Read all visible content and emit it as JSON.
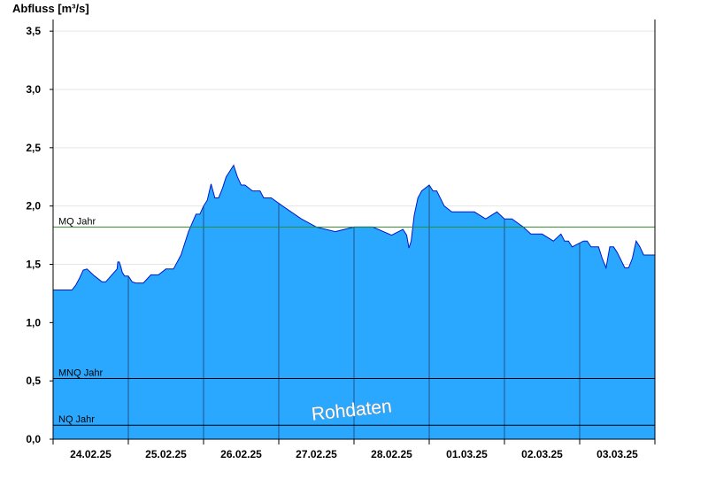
{
  "chart_data": {
    "type": "area",
    "ylabel": "Abfluss [m³/s]",
    "ylim": [
      0,
      3.6
    ],
    "xlim": [
      0,
      8
    ],
    "grid": true,
    "y_ticks": [
      {
        "value": 0.0,
        "label": "0,0"
      },
      {
        "value": 0.5,
        "label": "0,5"
      },
      {
        "value": 1.0,
        "label": "1,0"
      },
      {
        "value": 1.5,
        "label": "1,5"
      },
      {
        "value": 2.0,
        "label": "2,0"
      },
      {
        "value": 2.5,
        "label": "2,5"
      },
      {
        "value": 3.0,
        "label": "3,0"
      },
      {
        "value": 3.5,
        "label": "3,5"
      }
    ],
    "x_ticks": [
      "24.02.25",
      "25.02.25",
      "26.02.25",
      "27.02.25",
      "28.02.25",
      "01.03.25",
      "02.03.25",
      "03.03.25"
    ],
    "reference_lines": [
      {
        "name": "MQ Jahr",
        "value": 1.82,
        "color": "#2e8b2e"
      },
      {
        "name": "MNQ Jahr",
        "value": 0.52,
        "color": "#000000"
      },
      {
        "name": "NQ Jahr",
        "value": 0.12,
        "color": "#000000"
      }
    ],
    "annotation": "Rohdaten",
    "colors": {
      "fill": "#2aa8ff",
      "line": "#0018c8",
      "day_divider": "#1f3f6a",
      "grid": "#e6e6e6"
    },
    "series": [
      {
        "x": [
          0,
          0.25,
          0.3,
          0.35,
          0.4,
          0.45,
          0.55,
          0.65,
          0.7,
          0.85,
          0.86,
          0.88,
          0.9,
          0.92,
          0.95,
          1.0,
          1.05,
          1.1,
          1.2,
          1.3,
          1.4,
          1.5,
          1.6,
          1.7,
          1.8,
          1.9,
          1.95,
          2.0,
          2.05,
          2.1,
          2.15,
          2.2,
          2.25,
          2.3,
          2.4,
          2.45,
          2.5,
          2.55,
          2.65,
          2.7,
          2.75,
          2.8,
          2.85,
          2.9,
          3.05,
          3.3,
          3.5,
          3.75,
          4.0,
          4.25,
          4.5,
          4.65,
          4.7,
          4.73,
          4.76,
          4.8,
          4.85,
          4.9,
          5.0,
          5.05,
          5.1,
          5.2,
          5.3,
          5.5,
          5.6,
          5.75,
          5.9,
          6.0,
          6.1,
          6.25,
          6.35,
          6.5,
          6.65,
          6.75,
          6.8,
          6.85,
          6.9,
          7.05,
          7.1,
          7.15,
          7.2,
          7.25,
          7.3,
          7.35,
          7.4,
          7.45,
          7.5,
          7.6,
          7.65,
          7.7,
          7.75,
          7.8,
          7.85,
          7.9,
          8.0
        ],
        "values": [
          1.28,
          1.28,
          1.32,
          1.38,
          1.45,
          1.46,
          1.4,
          1.35,
          1.35,
          1.46,
          1.52,
          1.52,
          1.48,
          1.43,
          1.4,
          1.4,
          1.35,
          1.34,
          1.34,
          1.41,
          1.41,
          1.46,
          1.46,
          1.58,
          1.78,
          1.93,
          1.93,
          2.0,
          2.05,
          2.19,
          2.07,
          2.07,
          2.15,
          2.25,
          2.35,
          2.25,
          2.18,
          2.18,
          2.13,
          2.13,
          2.13,
          2.07,
          2.07,
          2.07,
          2.0,
          1.89,
          1.82,
          1.78,
          1.82,
          1.82,
          1.75,
          1.8,
          1.75,
          1.64,
          1.7,
          1.92,
          2.07,
          2.13,
          2.18,
          2.13,
          2.13,
          2.0,
          1.95,
          1.95,
          1.95,
          1.89,
          1.95,
          1.89,
          1.89,
          1.82,
          1.76,
          1.76,
          1.7,
          1.76,
          1.7,
          1.7,
          1.65,
          1.7,
          1.7,
          1.65,
          1.65,
          1.65,
          1.55,
          1.47,
          1.65,
          1.65,
          1.6,
          1.47,
          1.47,
          1.55,
          1.7,
          1.65,
          1.58,
          1.58,
          1.58
        ]
      }
    ]
  }
}
